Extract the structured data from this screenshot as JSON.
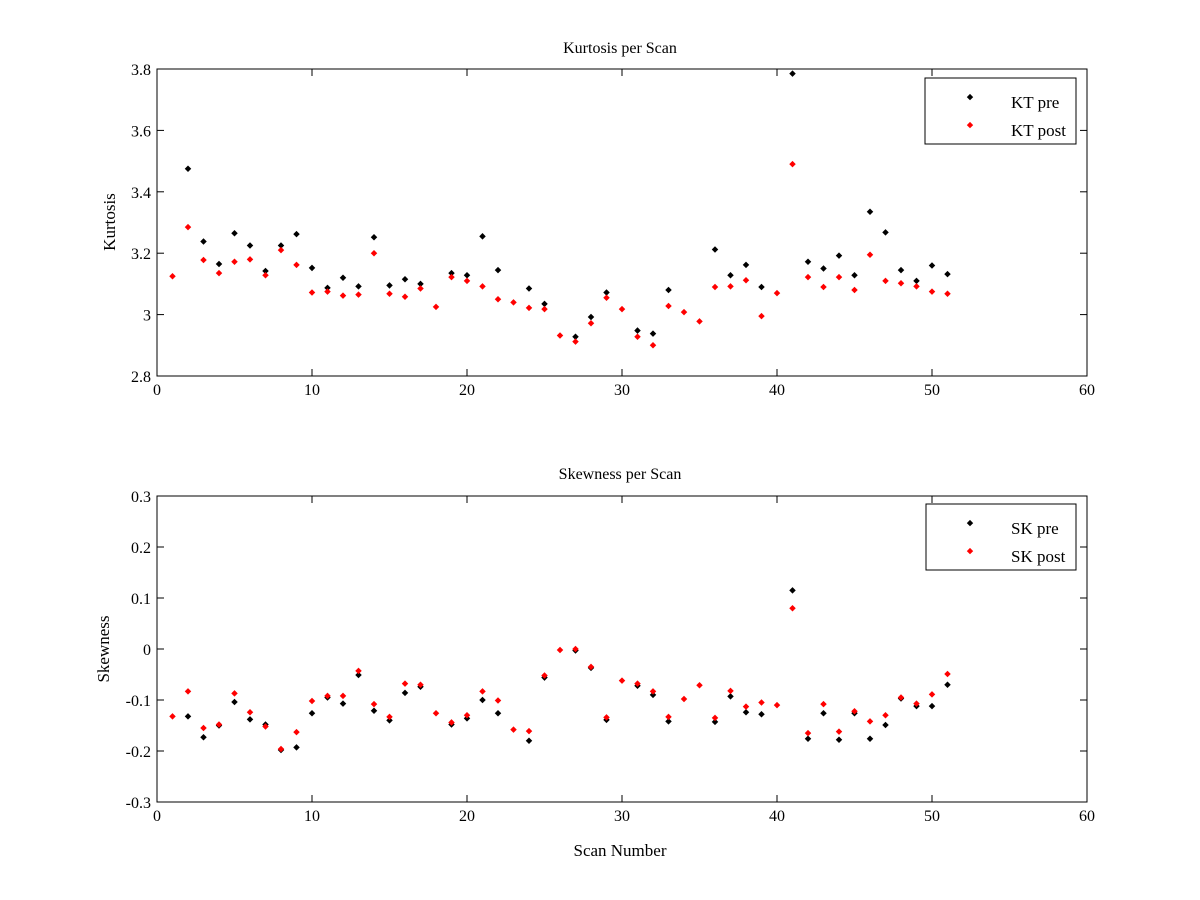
{
  "chart_data": [
    {
      "type": "scatter",
      "title": "Kurtosis per Scan",
      "xlabel": "",
      "ylabel": "Kurtosis",
      "xlim": [
        0,
        60
      ],
      "ylim": [
        2.8,
        3.8
      ],
      "xticks": [
        0,
        10,
        20,
        30,
        40,
        50,
        60
      ],
      "yticks": [
        2.8,
        3,
        3.2,
        3.4,
        3.6,
        3.8
      ],
      "xtick_labels": [
        "0",
        "10",
        "20",
        "30",
        "40",
        "50",
        "60"
      ],
      "ytick_labels": [
        "2.8",
        "3",
        "3.2",
        "3.4",
        "3.6",
        "3.8"
      ],
      "legend_position": "top-right",
      "series": [
        {
          "name": "KT pre",
          "color": "#000000",
          "x": [
            2,
            3,
            4,
            5,
            6,
            7,
            8,
            9,
            10,
            11,
            12,
            13,
            14,
            15,
            16,
            17,
            19,
            20,
            21,
            22,
            24,
            25,
            27,
            28,
            29,
            31,
            32,
            33,
            36,
            37,
            38,
            39,
            41,
            42,
            43,
            44,
            45,
            46,
            47,
            48,
            49,
            50,
            51
          ],
          "y": [
            3.475,
            3.238,
            3.165,
            3.265,
            3.225,
            3.142,
            3.225,
            3.262,
            3.152,
            3.087,
            3.12,
            3.092,
            3.252,
            3.095,
            3.115,
            3.1,
            3.135,
            3.128,
            3.255,
            3.145,
            3.085,
            3.035,
            2.928,
            2.992,
            3.072,
            2.948,
            2.938,
            3.08,
            3.212,
            3.128,
            3.162,
            3.09,
            3.785,
            3.172,
            3.15,
            3.192,
            3.128,
            3.335,
            3.268,
            3.145,
            3.11,
            3.16,
            3.132
          ]
        },
        {
          "name": "KT post",
          "color": "#ff0000",
          "x": [
            1,
            2,
            3,
            4,
            5,
            6,
            7,
            8,
            9,
            10,
            11,
            12,
            13,
            14,
            15,
            16,
            17,
            18,
            19,
            20,
            21,
            22,
            23,
            24,
            25,
            26,
            27,
            28,
            29,
            30,
            31,
            32,
            33,
            34,
            35,
            36,
            37,
            38,
            39,
            40,
            41,
            42,
            43,
            44,
            45,
            46,
            47,
            48,
            49,
            50,
            51
          ],
          "y": [
            3.125,
            3.285,
            3.178,
            3.135,
            3.172,
            3.18,
            3.128,
            3.21,
            3.162,
            3.072,
            3.075,
            3.062,
            3.065,
            3.2,
            3.068,
            3.058,
            3.085,
            3.025,
            3.122,
            3.11,
            3.092,
            3.05,
            3.04,
            3.022,
            3.018,
            2.932,
            2.912,
            2.972,
            3.055,
            3.018,
            2.928,
            2.9,
            3.028,
            3.008,
            2.978,
            3.09,
            3.092,
            3.112,
            2.995,
            3.07,
            3.49,
            3.122,
            3.09,
            3.122,
            3.08,
            3.195,
            3.11,
            3.102,
            3.092,
            3.075,
            3.068
          ]
        }
      ]
    },
    {
      "type": "scatter",
      "title": "Skewness per Scan",
      "xlabel": "Scan Number",
      "ylabel": "Skewness",
      "xlim": [
        0,
        60
      ],
      "ylim": [
        -0.3,
        0.3
      ],
      "xticks": [
        0,
        10,
        20,
        30,
        40,
        50,
        60
      ],
      "yticks": [
        -0.3,
        -0.2,
        -0.1,
        0,
        0.1,
        0.2,
        0.3
      ],
      "xtick_labels": [
        "0",
        "10",
        "20",
        "30",
        "40",
        "50",
        "60"
      ],
      "ytick_labels": [
        "-0.3",
        "-0.2",
        "-0.1",
        "0",
        "0.1",
        "0.2",
        "0.3"
      ],
      "legend_position": "top-right",
      "series": [
        {
          "name": "SK pre",
          "color": "#000000",
          "x": [
            2,
            3,
            4,
            5,
            6,
            7,
            8,
            9,
            10,
            11,
            12,
            13,
            14,
            15,
            16,
            17,
            19,
            20,
            21,
            22,
            24,
            25,
            27,
            28,
            29,
            31,
            32,
            33,
            36,
            37,
            38,
            39,
            41,
            42,
            43,
            44,
            45,
            46,
            47,
            48,
            49,
            50,
            51
          ],
          "y": [
            -0.132,
            -0.173,
            -0.15,
            -0.104,
            -0.138,
            -0.148,
            -0.198,
            -0.193,
            -0.126,
            -0.095,
            -0.107,
            -0.051,
            -0.121,
            -0.14,
            -0.086,
            -0.074,
            -0.148,
            -0.136,
            -0.1,
            -0.126,
            -0.18,
            -0.056,
            -0.003,
            -0.037,
            -0.139,
            -0.072,
            -0.09,
            -0.142,
            -0.143,
            -0.093,
            -0.124,
            -0.128,
            0.115,
            -0.176,
            -0.126,
            -0.178,
            -0.126,
            -0.176,
            -0.149,
            -0.097,
            -0.112,
            -0.112,
            -0.07
          ]
        },
        {
          "name": "SK post",
          "color": "#ff0000",
          "x": [
            1,
            2,
            3,
            4,
            5,
            6,
            7,
            8,
            9,
            10,
            11,
            12,
            13,
            14,
            15,
            16,
            17,
            18,
            19,
            20,
            21,
            22,
            23,
            24,
            25,
            26,
            27,
            28,
            29,
            30,
            31,
            32,
            33,
            34,
            35,
            36,
            37,
            38,
            39,
            40,
            41,
            42,
            43,
            44,
            45,
            46,
            47,
            48,
            49,
            50,
            51
          ],
          "y": [
            -0.132,
            -0.083,
            -0.155,
            -0.148,
            -0.087,
            -0.124,
            -0.152,
            -0.196,
            -0.163,
            -0.102,
            -0.092,
            -0.092,
            -0.043,
            -0.108,
            -0.133,
            -0.068,
            -0.07,
            -0.126,
            -0.144,
            -0.13,
            -0.083,
            -0.101,
            -0.158,
            -0.161,
            -0.052,
            -0.002,
            0,
            -0.035,
            -0.134,
            -0.062,
            -0.068,
            -0.083,
            -0.133,
            -0.098,
            -0.071,
            -0.135,
            -0.082,
            -0.113,
            -0.105,
            -0.11,
            0.08,
            -0.165,
            -0.108,
            -0.162,
            -0.122,
            -0.142,
            -0.13,
            -0.095,
            -0.107,
            -0.089,
            -0.049
          ]
        }
      ]
    }
  ]
}
